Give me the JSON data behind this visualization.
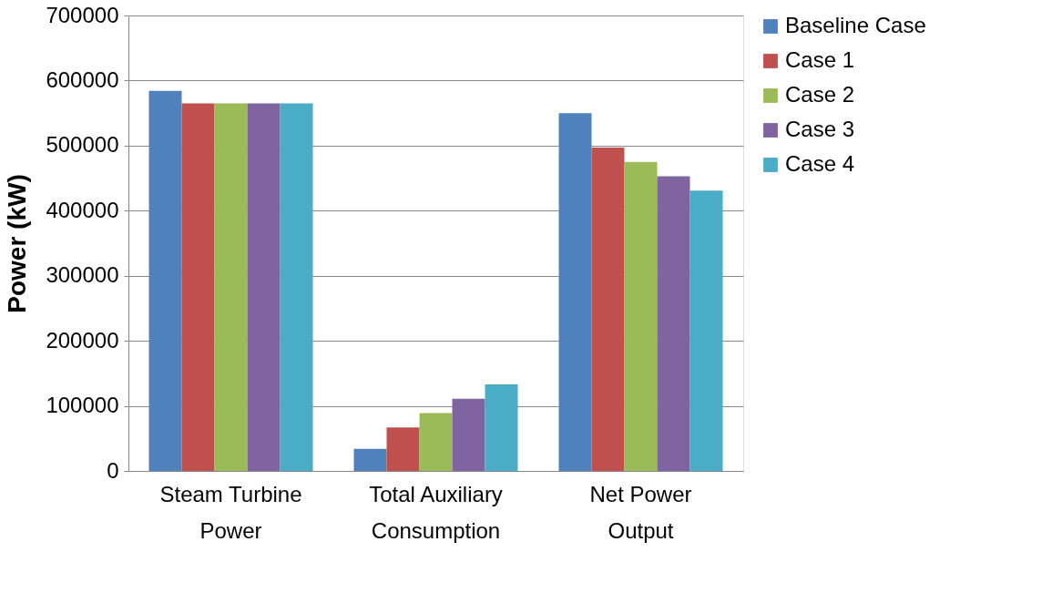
{
  "chart_data": {
    "type": "bar",
    "ylabel": "Power (kW)",
    "categories": [
      "Steam Turbine Power",
      "Total Auxiliary Consumption",
      "Net Power Output"
    ],
    "series": [
      {
        "name": "Baseline Case",
        "color": "#4f81bd",
        "values": [
          584000,
          34000,
          550000
        ]
      },
      {
        "name": "Case 1",
        "color": "#c0504d",
        "values": [
          565000,
          67000,
          497000
        ]
      },
      {
        "name": "Case 2",
        "color": "#9bbb59",
        "values": [
          565000,
          89000,
          475000
        ]
      },
      {
        "name": "Case 3",
        "color": "#8064a2",
        "values": [
          565000,
          111000,
          453000
        ]
      },
      {
        "name": "Case 4",
        "color": "#4bacc6",
        "values": [
          565000,
          133000,
          431000
        ]
      }
    ],
    "ylim": [
      0,
      700000
    ],
    "yticks": [
      0,
      100000,
      200000,
      300000,
      400000,
      500000,
      600000,
      700000
    ],
    "grid": "y",
    "legend": "right"
  }
}
